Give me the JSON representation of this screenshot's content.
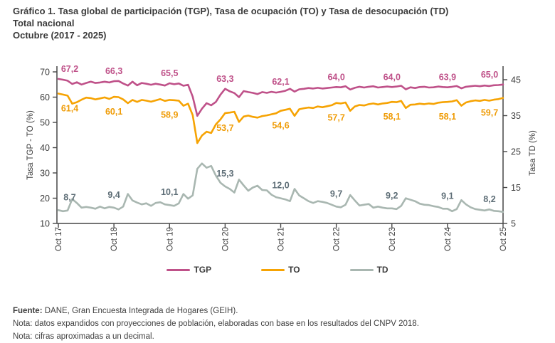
{
  "title": {
    "line1": "Gráfico 1. Tasa global de participación (TGP), Tasa de ocupación (TO) y Tasa de desocupación (TD)",
    "line2": "Total nacional",
    "line3": "Octubre (2017 - 2025)"
  },
  "chart_data": {
    "type": "line",
    "title": "Tasa global de participación (TGP), Tasa de ocupación (TO) y Tasa de desocupación (TD), Total nacional, Octubre (2017 - 2025)",
    "grid": false,
    "legend_position": "bottom",
    "x_axis": {
      "unit": "month",
      "start": "Oct 2017",
      "end": "Oct 2025",
      "tick_labels": [
        "Oct 17",
        "Oct 18",
        "Oct 19",
        "Oct 20",
        "Oct 21",
        "Oct 22",
        "Oct 23",
        "Oct 24",
        "Oct 25"
      ],
      "tick_month_indices": [
        0,
        12,
        24,
        36,
        48,
        60,
        72,
        84,
        96
      ]
    },
    "left_axis": {
      "label": "Tasa TGP - TO (%)",
      "min": 10,
      "max": 70,
      "ticks": [
        10,
        20,
        30,
        40,
        50,
        60,
        70
      ]
    },
    "right_axis": {
      "label": "Tasa TD (%)",
      "min": 5,
      "max": 45,
      "ticks": [
        5,
        15,
        25,
        35,
        45
      ]
    },
    "series": [
      {
        "name": "TGP",
        "axis": "left",
        "color": "#bf5189",
        "label_color": "#bf5189",
        "october_values": [
          67.2,
          66.3,
          65.5,
          63.3,
          62.1,
          64.0,
          64.0,
          63.9,
          65.0
        ],
        "october_labels": [
          "67,2",
          "66,3",
          "65,5",
          "63,3",
          "62,1",
          "64,0",
          "64,0",
          "63,9",
          "65,0"
        ],
        "values": [
          67.2,
          66.9,
          66.5,
          65.2,
          65.9,
          65.0,
          65.6,
          66.1,
          65.6,
          65.8,
          66.1,
          65.8,
          66.3,
          66.4,
          65.4,
          64.6,
          66.1,
          64.7,
          65.6,
          65.3,
          64.9,
          65.3,
          65.0,
          64.6,
          65.5,
          65.1,
          65.4,
          64.5,
          64.9,
          60.2,
          52.6,
          55.4,
          57.6,
          56.8,
          58.1,
          61.0,
          63.3,
          62.3,
          61.6,
          60.0,
          62.4,
          62.0,
          61.7,
          61.2,
          62.0,
          61.7,
          62.1,
          61.8,
          62.1,
          62.5,
          63.3,
          62.2,
          63.1,
          63.3,
          63.6,
          63.4,
          63.7,
          63.4,
          63.6,
          63.8,
          64.0,
          63.9,
          64.3,
          63.0,
          63.7,
          64.1,
          63.8,
          64.1,
          64.3,
          63.8,
          64.0,
          64.2,
          64.0,
          64.2,
          64.5,
          63.1,
          63.9,
          63.6,
          64.0,
          64.1,
          63.8,
          63.9,
          64.2,
          64.0,
          63.9,
          64.1,
          64.4,
          63.5,
          64.1,
          64.3,
          64.5,
          64.3,
          64.6,
          64.4,
          64.7,
          64.8,
          65.0
        ]
      },
      {
        "name": "TO",
        "axis": "left",
        "color": "#f6a303",
        "label_color": "#ef9c07",
        "october_values": [
          61.4,
          60.1,
          58.9,
          53.7,
          54.6,
          57.7,
          58.1,
          58.1,
          59.7
        ],
        "october_labels": [
          "61,4",
          "60,1",
          "58,9",
          "53,7",
          "54,6",
          "57,7",
          "58,1",
          "58,1",
          "59,7"
        ],
        "values": [
          61.4,
          61.0,
          60.6,
          57.4,
          58.0,
          59.0,
          59.8,
          59.6,
          59.1,
          59.5,
          59.9,
          59.3,
          60.1,
          60.0,
          59.1,
          57.6,
          58.9,
          58.1,
          58.9,
          58.6,
          58.2,
          58.7,
          59.2,
          58.5,
          58.9,
          58.8,
          58.6,
          56.6,
          57.4,
          52.9,
          41.8,
          44.8,
          46.3,
          45.8,
          49.2,
          51.2,
          53.7,
          53.9,
          54.2,
          50.2,
          52.3,
          52.7,
          52.2,
          51.9,
          52.5,
          52.8,
          53.2,
          53.6,
          54.6,
          55.0,
          55.4,
          52.6,
          55.2,
          55.6,
          55.9,
          55.7,
          56.3,
          56.0,
          56.4,
          56.8,
          57.7,
          57.5,
          57.9,
          54.6,
          56.3,
          56.9,
          56.7,
          57.2,
          57.5,
          57.1,
          57.5,
          57.7,
          58.1,
          58.0,
          58.5,
          55.7,
          57.0,
          57.1,
          57.4,
          57.2,
          57.5,
          57.3,
          57.8,
          58.0,
          58.1,
          58.3,
          58.8,
          56.6,
          57.9,
          58.4,
          58.7,
          58.5,
          58.9,
          58.6,
          59.0,
          59.2,
          59.7
        ]
      },
      {
        "name": "TD",
        "axis": "right",
        "color": "#a9b7b1",
        "label_color": "#5d6d76",
        "october_values": [
          8.7,
          9.4,
          10.1,
          15.3,
          12.0,
          9.7,
          9.2,
          9.1,
          8.2
        ],
        "october_labels": [
          "8,7",
          "9,4",
          "10,1",
          "15,3",
          "12,0",
          "9,7",
          "9,2",
          "9,1",
          "8,2"
        ],
        "values": [
          8.7,
          8.4,
          8.6,
          11.8,
          10.7,
          9.4,
          9.6,
          9.4,
          9.1,
          9.7,
          9.2,
          9.6,
          9.4,
          8.9,
          9.7,
          13.2,
          11.4,
          10.8,
          10.3,
          10.6,
          9.9,
          10.7,
          10.9,
          10.3,
          10.1,
          9.9,
          10.6,
          13.2,
          11.9,
          12.8,
          20.2,
          21.7,
          20.5,
          21.0,
          18.3,
          16.3,
          15.3,
          14.6,
          13.6,
          17.2,
          15.6,
          14.1,
          15.0,
          15.5,
          14.3,
          14.2,
          13.0,
          12.3,
          12.0,
          11.7,
          11.2,
          14.6,
          12.8,
          12.0,
          11.2,
          10.7,
          11.2,
          11.0,
          10.7,
          10.2,
          9.7,
          9.5,
          10.2,
          12.9,
          11.4,
          10.0,
          10.2,
          10.4,
          9.4,
          9.7,
          9.4,
          9.2,
          9.2,
          9.0,
          9.9,
          12.0,
          11.6,
          11.2,
          10.5,
          10.2,
          10.1,
          9.8,
          9.6,
          9.1,
          9.1,
          8.4,
          9.0,
          11.5,
          10.3,
          9.5,
          9.0,
          8.8,
          8.6,
          8.9,
          8.5,
          8.4,
          8.2
        ]
      }
    ]
  },
  "legend": {
    "items": [
      "TGP",
      "TO",
      "TD"
    ]
  },
  "footer": {
    "source_label": "Fuente:",
    "source_text": "DANE, Gran Encuesta Integrada de Hogares (GEIH).",
    "note1": "Nota: datos expandidos con proyecciones de población, elaboradas con base en los resultados del CNPV 2018.",
    "note2": "Nota: cifras aproximadas a un decimal."
  }
}
